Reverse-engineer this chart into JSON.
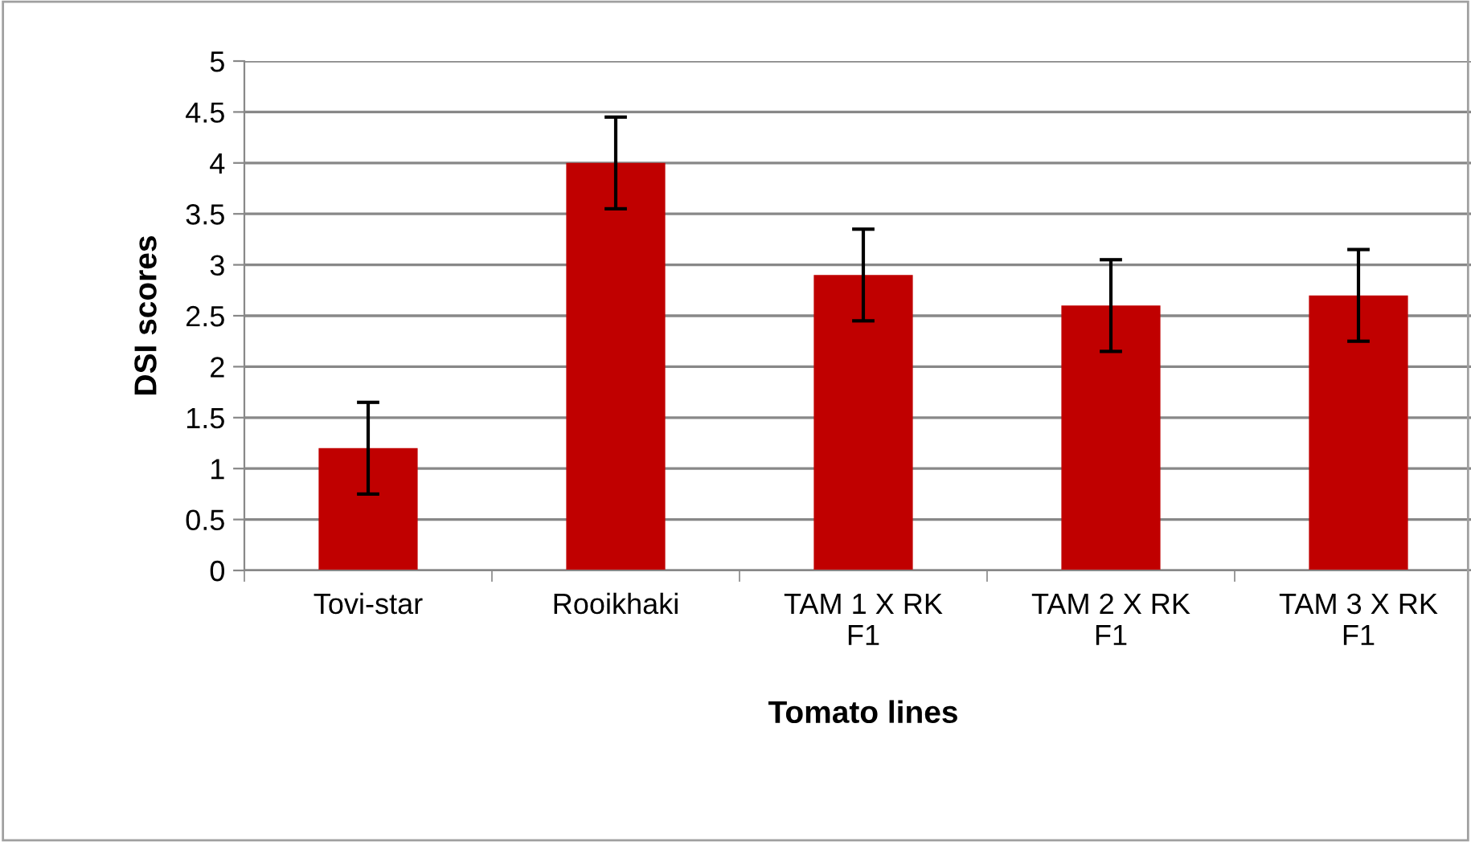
{
  "chart_data": {
    "type": "bar",
    "xlabel": "Tomato lines",
    "ylabel": "DSI scores",
    "categories": [
      "Tovi-star",
      "Rooikhaki",
      "TAM 1 X RK\nF1",
      "TAM 2 X RK\nF1",
      "TAM 3 X RK\nF1"
    ],
    "values": [
      1.2,
      4.0,
      2.9,
      2.6,
      2.7
    ],
    "errors": [
      0.45,
      0.45,
      0.45,
      0.45,
      0.45
    ],
    "color": "#c00000",
    "ylim": [
      0,
      5
    ],
    "yticks": [
      0,
      0.5,
      1,
      1.5,
      2,
      2.5,
      3,
      3.5,
      4,
      4.5,
      5
    ],
    "grid": "y"
  }
}
